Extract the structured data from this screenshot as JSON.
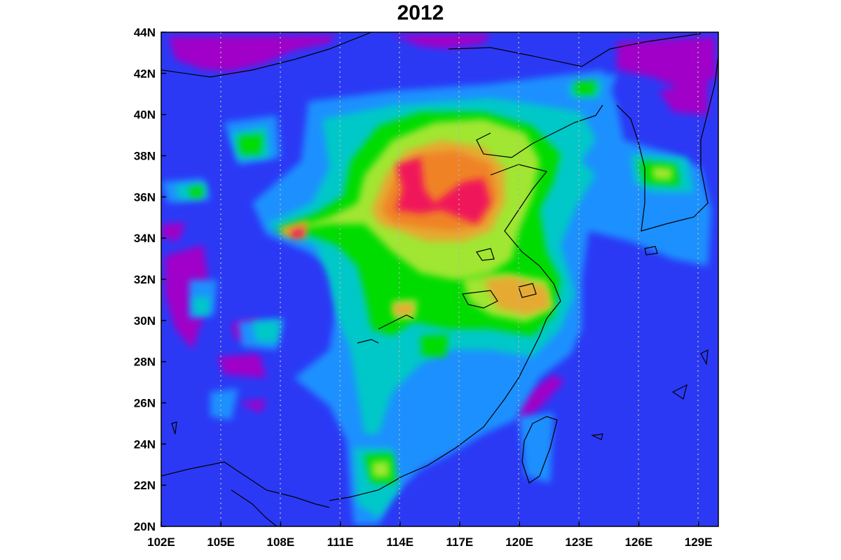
{
  "title": "2012",
  "map": {
    "projection": "equirectangular",
    "lon_range": [
      102,
      130
    ],
    "lat_range": [
      20,
      44
    ],
    "lon_ticks": [
      {
        "value": 102,
        "label": "102E"
      },
      {
        "value": 105,
        "label": "105E"
      },
      {
        "value": 108,
        "label": "108E"
      },
      {
        "value": 111,
        "label": "111E"
      },
      {
        "value": 114,
        "label": "114E"
      },
      {
        "value": 117,
        "label": "117E"
      },
      {
        "value": 120,
        "label": "120E"
      },
      {
        "value": 123,
        "label": "123E"
      },
      {
        "value": 126,
        "label": "126E"
      },
      {
        "value": 129,
        "label": "129E"
      }
    ],
    "lat_ticks": [
      {
        "value": 20,
        "label": "20N"
      },
      {
        "value": 22,
        "label": "22N"
      },
      {
        "value": 24,
        "label": "24N"
      },
      {
        "value": 26,
        "label": "26N"
      },
      {
        "value": 28,
        "label": "28N"
      },
      {
        "value": 30,
        "label": "30N"
      },
      {
        "value": 32,
        "label": "32N"
      },
      {
        "value": 34,
        "label": "34N"
      },
      {
        "value": 36,
        "label": "36N"
      },
      {
        "value": 38,
        "label": "38N"
      },
      {
        "value": 40,
        "label": "40N"
      },
      {
        "value": 42,
        "label": "42N"
      },
      {
        "value": 44,
        "label": "44N"
      }
    ],
    "meridian_gridlines": "dotted",
    "colors": {
      "background": "#2b39f5",
      "level_violet": "#a000c8",
      "level_magenta_low": "#c020b0",
      "level_1": "#1e90ff",
      "level_2": "#00c8c8",
      "level_3": "#00dc00",
      "level_4": "#a0e632",
      "level_5": "#e6aa32",
      "level_6": "#f08228",
      "level_7": "#f0145a"
    }
  }
}
